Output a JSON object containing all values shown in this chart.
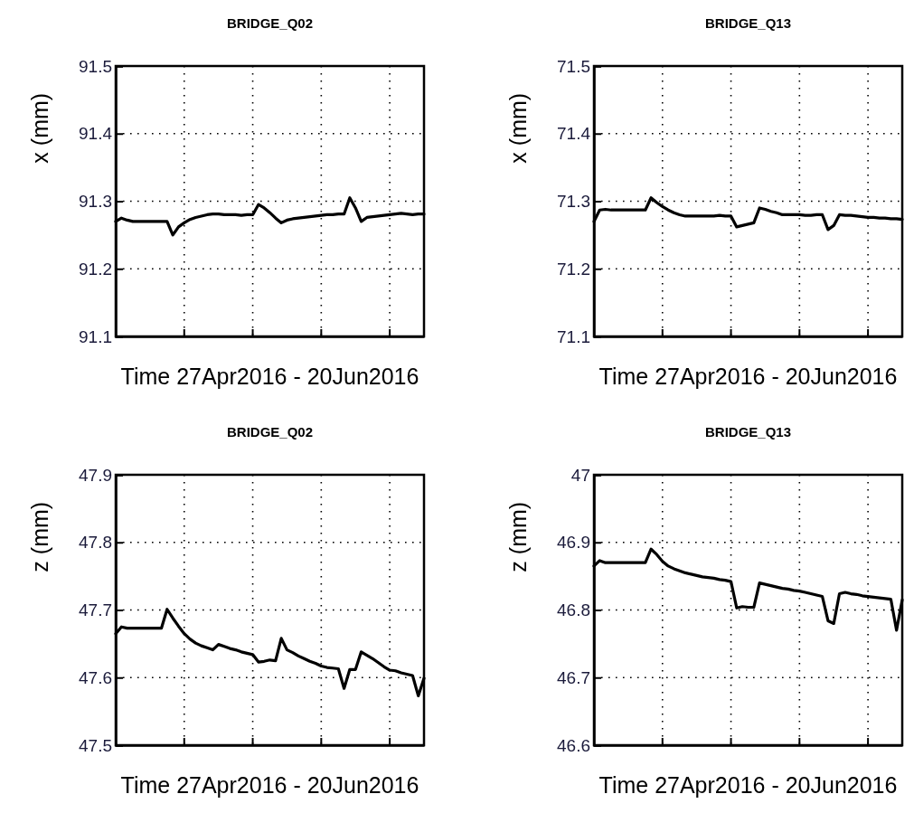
{
  "chart_data": [
    {
      "type": "line",
      "title": "BRIDGE_Q02",
      "xlabel": "Time 27Apr2016 - 20Jun2016",
      "ylabel": "x (mm)",
      "ylim": [
        91.1,
        91.5
      ],
      "yticks": [
        91.1,
        91.2,
        91.3,
        91.4,
        91.5
      ],
      "tick_labels": "y",
      "grid": true,
      "line_style": "solid",
      "marker": "none",
      "categories": [
        null,
        null,
        null,
        null,
        null,
        null,
        null,
        null,
        null,
        null,
        null,
        null,
        null,
        null,
        null,
        null,
        null,
        null,
        null,
        null,
        null,
        null,
        null,
        null,
        null,
        null,
        null,
        null,
        null,
        null,
        null,
        null,
        null,
        null,
        null,
        null,
        null,
        null,
        null,
        null,
        null,
        null,
        null,
        null,
        null,
        null,
        null,
        null,
        null,
        null,
        null,
        null,
        null,
        null,
        null
      ],
      "series": [
        {
          "color": "#000000",
          "values": [
            91.27,
            91.275,
            91.272,
            91.27,
            91.27,
            91.27,
            91.27,
            91.27,
            91.27,
            91.27,
            91.25,
            91.262,
            91.268,
            91.273,
            91.276,
            91.278,
            91.28,
            91.281,
            91.281,
            91.28,
            91.28,
            91.28,
            91.279,
            91.28,
            91.28,
            91.295,
            91.29,
            91.283,
            91.275,
            91.268,
            91.272,
            91.274,
            91.275,
            91.276,
            91.277,
            91.278,
            91.279,
            91.28,
            91.28,
            91.281,
            91.281,
            91.305,
            91.29,
            91.27,
            91.276,
            91.277,
            91.278,
            91.279,
            91.28,
            91.281,
            91.282,
            91.281,
            91.28,
            91.281,
            91.281
          ]
        }
      ]
    },
    {
      "type": "line",
      "title": "BRIDGE_Q13",
      "xlabel": "Time 27Apr2016 - 20Jun2016",
      "ylabel": "x (mm)",
      "ylim": [
        71.1,
        71.5
      ],
      "yticks": [
        71.1,
        71.2,
        71.3,
        71.4,
        71.5
      ],
      "tick_labels": "y",
      "grid": true,
      "line_style": "solid",
      "marker": "none",
      "categories": [
        null,
        null,
        null,
        null,
        null,
        null,
        null,
        null,
        null,
        null,
        null,
        null,
        null,
        null,
        null,
        null,
        null,
        null,
        null,
        null,
        null,
        null,
        null,
        null,
        null,
        null,
        null,
        null,
        null,
        null,
        null,
        null,
        null,
        null,
        null,
        null,
        null,
        null,
        null,
        null,
        null,
        null,
        null,
        null,
        null,
        null,
        null,
        null,
        null,
        null,
        null,
        null,
        null,
        null,
        null
      ],
      "series": [
        {
          "color": "#000000",
          "values": [
            71.27,
            71.287,
            71.288,
            71.287,
            71.287,
            71.287,
            71.287,
            71.287,
            71.287,
            71.287,
            71.305,
            71.298,
            71.292,
            71.287,
            71.283,
            71.28,
            71.278,
            71.278,
            71.278,
            71.278,
            71.278,
            71.278,
            71.279,
            71.278,
            71.278,
            71.262,
            71.264,
            71.266,
            71.268,
            71.29,
            71.288,
            71.285,
            71.283,
            71.28,
            71.28,
            71.28,
            71.28,
            71.279,
            71.279,
            71.28,
            71.28,
            71.258,
            71.264,
            71.28,
            71.279,
            71.279,
            71.278,
            71.277,
            71.276,
            71.276,
            71.275,
            71.275,
            71.274,
            71.274,
            71.273
          ]
        }
      ]
    },
    {
      "type": "line",
      "title": "BRIDGE_Q02",
      "xlabel": "Time 27Apr2016 - 20Jun2016",
      "ylabel": "z (mm)",
      "ylim": [
        47.5,
        47.9
      ],
      "yticks": [
        47.5,
        47.6,
        47.7,
        47.8,
        47.9
      ],
      "tick_labels": "y",
      "grid": true,
      "line_style": "solid",
      "marker": "none",
      "categories": [
        null,
        null,
        null,
        null,
        null,
        null,
        null,
        null,
        null,
        null,
        null,
        null,
        null,
        null,
        null,
        null,
        null,
        null,
        null,
        null,
        null,
        null,
        null,
        null,
        null,
        null,
        null,
        null,
        null,
        null,
        null,
        null,
        null,
        null,
        null,
        null,
        null,
        null,
        null,
        null,
        null,
        null,
        null,
        null,
        null,
        null,
        null,
        null,
        null,
        null,
        null,
        null,
        null,
        null,
        null
      ],
      "series": [
        {
          "color": "#000000",
          "values": [
            47.665,
            47.675,
            47.673,
            47.673,
            47.673,
            47.673,
            47.673,
            47.673,
            47.673,
            47.701,
            47.688,
            47.676,
            47.665,
            47.657,
            47.651,
            47.647,
            47.644,
            47.641,
            47.649,
            47.646,
            47.643,
            47.641,
            47.638,
            47.636,
            47.634,
            47.623,
            47.624,
            47.626,
            47.625,
            47.658,
            47.641,
            47.637,
            47.632,
            47.628,
            47.624,
            47.621,
            47.617,
            47.615,
            47.614,
            47.613,
            47.584,
            47.612,
            47.612,
            47.638,
            47.633,
            47.628,
            47.622,
            47.616,
            47.611,
            47.61,
            47.607,
            47.605,
            47.603,
            47.573,
            47.599
          ]
        }
      ]
    },
    {
      "type": "line",
      "title": "BRIDGE_Q13",
      "xlabel": "Time 27Apr2016 - 20Jun2016",
      "ylabel": "z (mm)",
      "ylim": [
        46.6,
        47
      ],
      "yticks": [
        46.6,
        46.7,
        46.8,
        46.9,
        47
      ],
      "tick_labels": "y",
      "grid": true,
      "line_style": "solid",
      "marker": "none",
      "categories": [
        null,
        null,
        null,
        null,
        null,
        null,
        null,
        null,
        null,
        null,
        null,
        null,
        null,
        null,
        null,
        null,
        null,
        null,
        null,
        null,
        null,
        null,
        null,
        null,
        null,
        null,
        null,
        null,
        null,
        null,
        null,
        null,
        null,
        null,
        null,
        null,
        null,
        null,
        null,
        null,
        null,
        null,
        null,
        null,
        null,
        null,
        null,
        null,
        null,
        null,
        null,
        null,
        null,
        null,
        null
      ],
      "series": [
        {
          "color": "#000000",
          "values": [
            46.865,
            46.873,
            46.87,
            46.87,
            46.87,
            46.87,
            46.87,
            46.87,
            46.87,
            46.87,
            46.89,
            46.882,
            46.872,
            46.865,
            46.861,
            46.858,
            46.855,
            46.853,
            46.851,
            46.849,
            46.848,
            46.847,
            46.845,
            46.844,
            46.842,
            46.803,
            46.805,
            46.804,
            46.804,
            46.84,
            46.838,
            46.836,
            46.834,
            46.832,
            46.831,
            46.829,
            46.828,
            46.826,
            46.824,
            46.822,
            46.82,
            46.784,
            46.78,
            46.824,
            46.826,
            46.824,
            46.823,
            46.821,
            46.82,
            46.819,
            46.818,
            46.817,
            46.816,
            46.77,
            46.815
          ]
        }
      ]
    }
  ]
}
